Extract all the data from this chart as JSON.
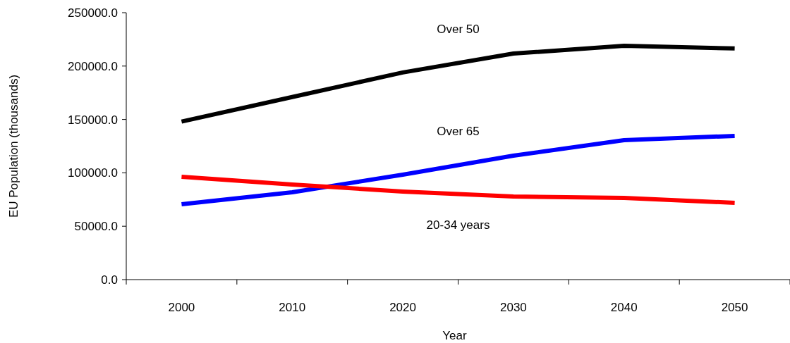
{
  "chart_data": {
    "type": "line",
    "xlabel": "Year",
    "ylabel": "EU Population (thousands)",
    "categories": [
      "2000",
      "2010",
      "2020",
      "2030",
      "2040",
      "2050"
    ],
    "series": [
      {
        "name": "Over 50",
        "color": "#000000",
        "values": [
          148000,
          171000,
          194000,
          211700,
          219000,
          216500
        ]
      },
      {
        "name": "Over 65",
        "color": "#0000ff",
        "values": [
          70600,
          81800,
          98300,
          116100,
          130600,
          134600
        ]
      },
      {
        "name": "20-34 years",
        "color": "#ff0000",
        "values": [
          96300,
          89100,
          82500,
          77800,
          76500,
          71900
        ]
      }
    ],
    "ylim": [
      0,
      250000
    ],
    "yticks": [
      {
        "value": 0,
        "label": "0.0"
      },
      {
        "value": 50000,
        "label": "50000.0"
      },
      {
        "value": 100000,
        "label": "100000.0"
      },
      {
        "value": 150000,
        "label": "150000.0"
      },
      {
        "value": 200000,
        "label": "200000.0"
      },
      {
        "value": 250000,
        "label": "250000.0"
      }
    ],
    "grid": false,
    "legend": false,
    "marker": "none",
    "line_style": "solid"
  }
}
